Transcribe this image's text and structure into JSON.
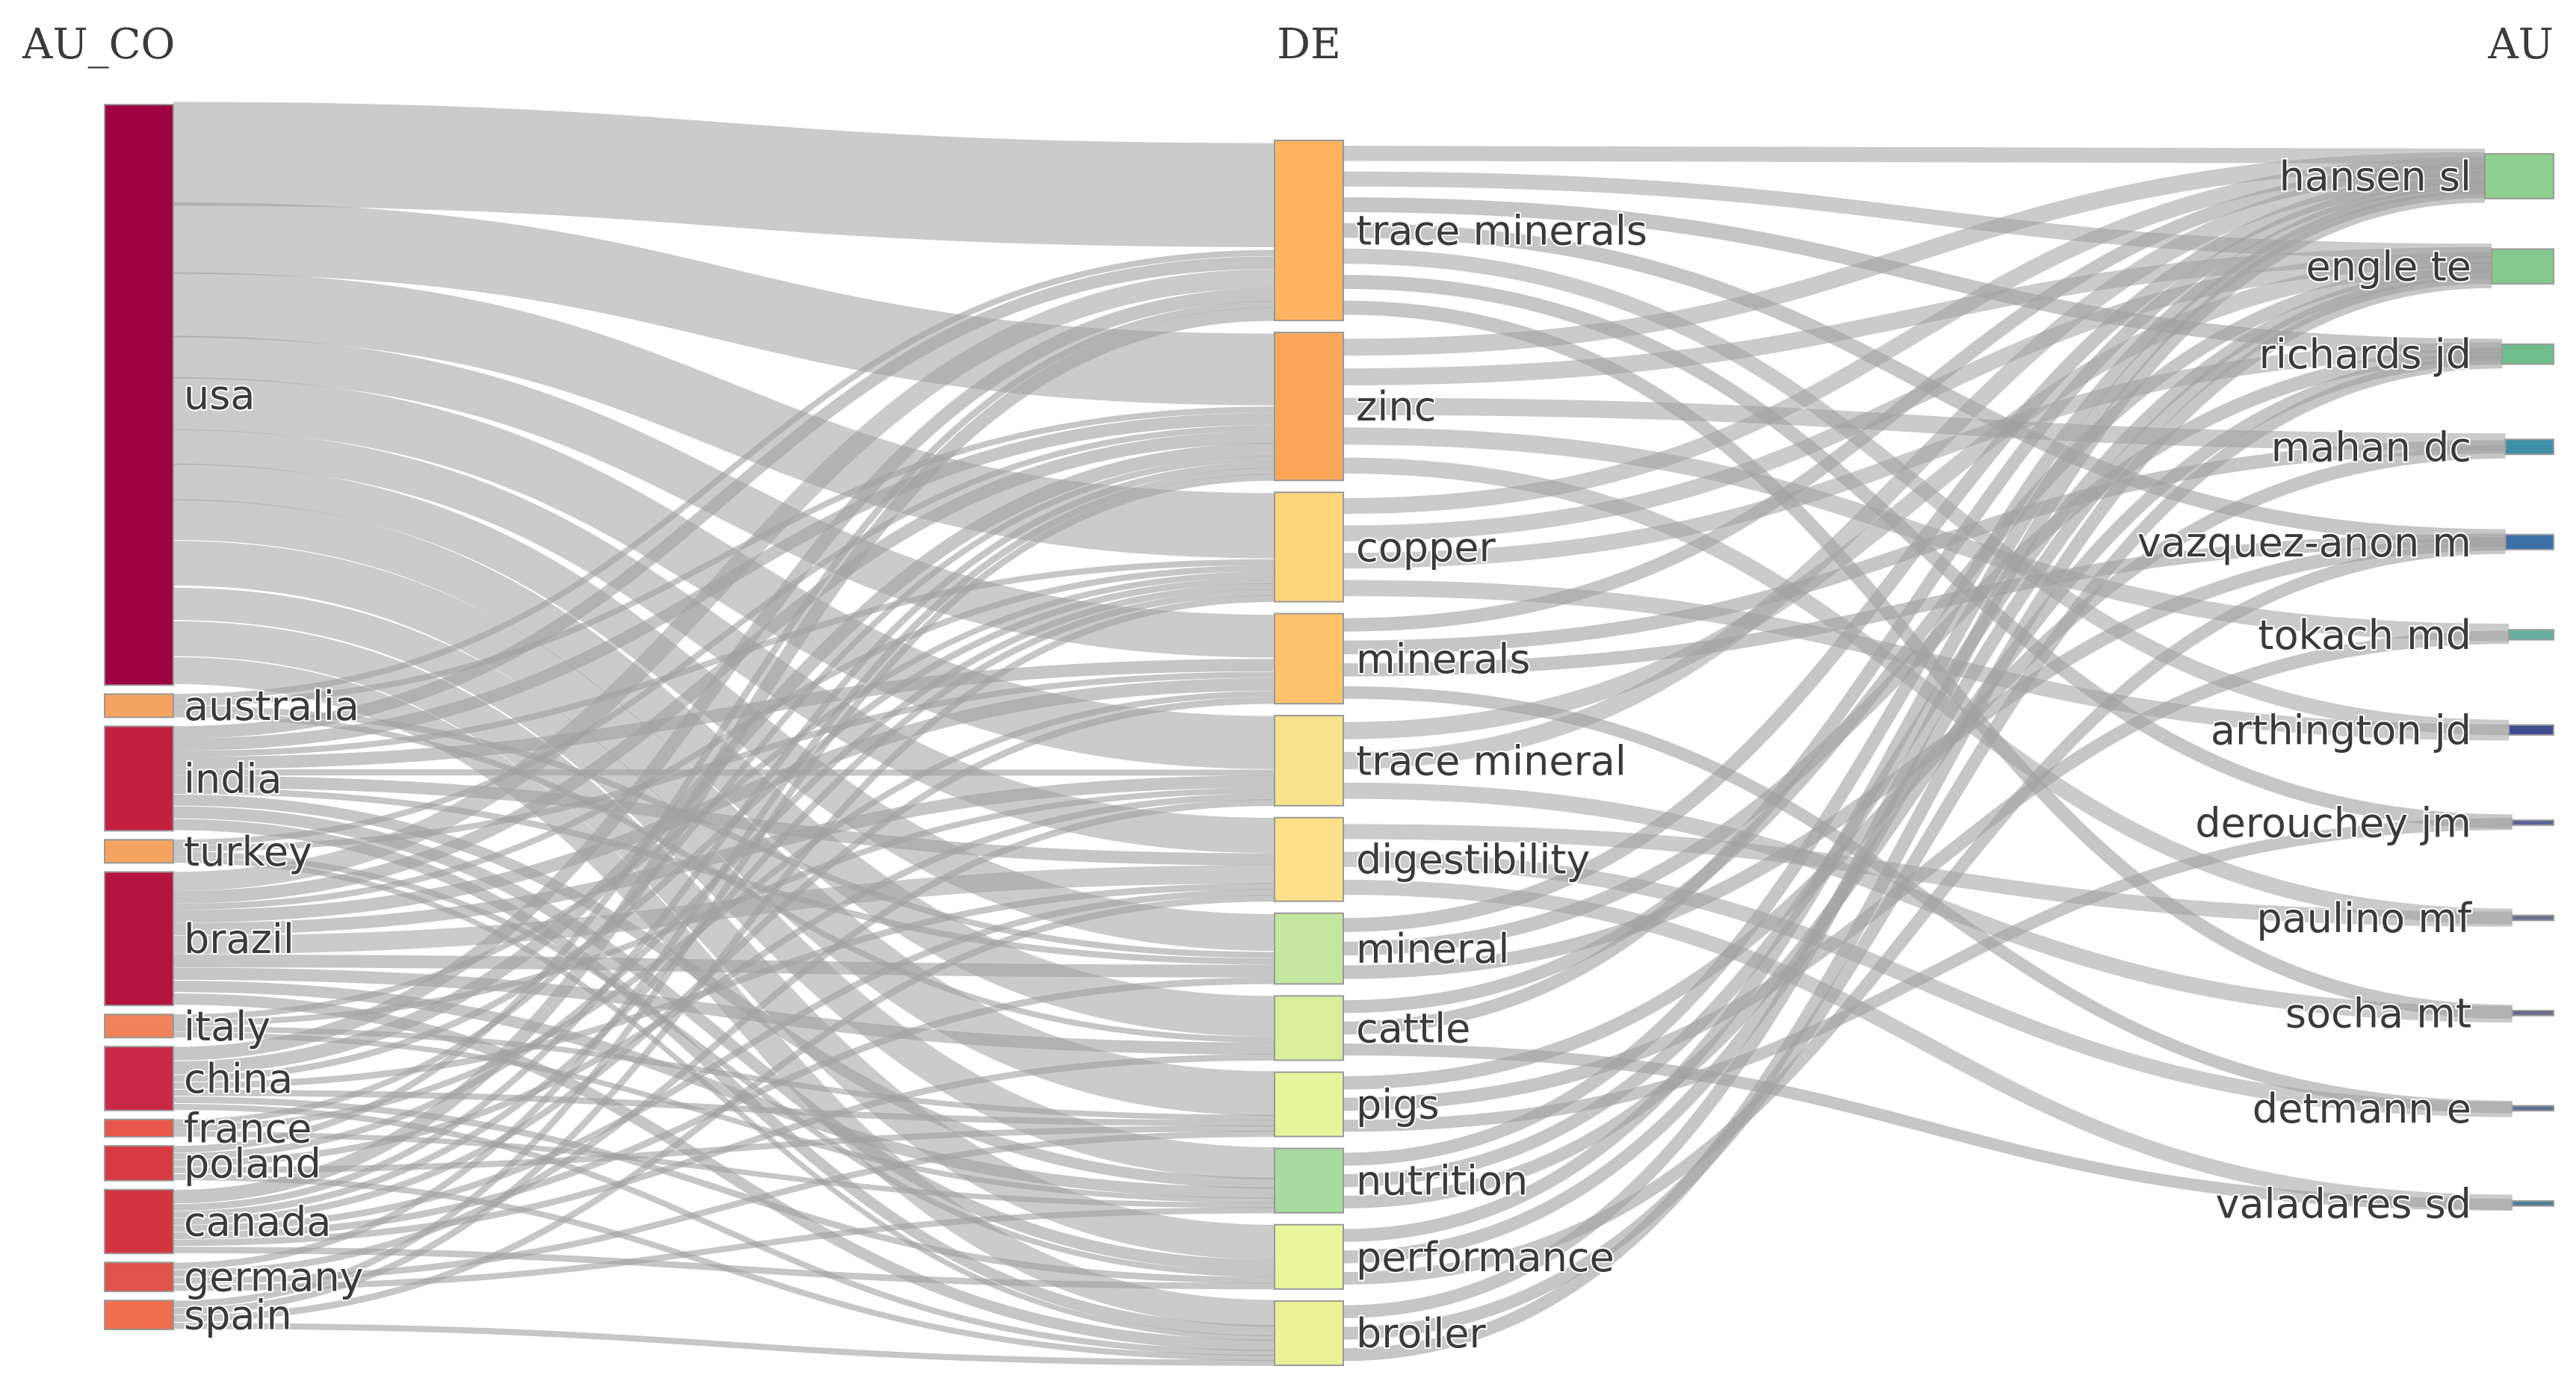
{
  "columns": [
    {
      "key": "AU_CO",
      "title": "AU_CO"
    },
    {
      "key": "DE",
      "title": "DE"
    },
    {
      "key": "AU",
      "title": "AU"
    }
  ],
  "nodes": {
    "AU_CO": [
      {
        "id": "usa",
        "label": "usa",
        "weight": 100,
        "color": "#9e0142"
      },
      {
        "id": "australia",
        "label": "australia",
        "weight": 4,
        "color": "#f4a460"
      },
      {
        "id": "india",
        "label": "india",
        "weight": 18,
        "color": "#c2203f"
      },
      {
        "id": "turkey",
        "label": "turkey",
        "weight": 4,
        "color": "#f4a460"
      },
      {
        "id": "brazil",
        "label": "brazil",
        "weight": 23,
        "color": "#b5143f"
      },
      {
        "id": "italy",
        "label": "italy",
        "weight": 4,
        "color": "#f0825a"
      },
      {
        "id": "china",
        "label": "china",
        "weight": 11,
        "color": "#c92846"
      },
      {
        "id": "france",
        "label": "france",
        "weight": 3,
        "color": "#e8584a"
      },
      {
        "id": "poland",
        "label": "poland",
        "weight": 6,
        "color": "#d83a44"
      },
      {
        "id": "canada",
        "label": "canada",
        "weight": 11,
        "color": "#d2353f"
      },
      {
        "id": "germany",
        "label": "germany",
        "weight": 5,
        "color": "#e0524a"
      },
      {
        "id": "spain",
        "label": "spain",
        "weight": 5,
        "color": "#f06f4e"
      }
    ],
    "DE": [
      {
        "id": "trace-minerals",
        "label": "trace minerals",
        "weight": 28,
        "color": "#fdb35f"
      },
      {
        "id": "zinc",
        "label": "zinc",
        "weight": 23,
        "color": "#fca65a"
      },
      {
        "id": "copper",
        "label": "copper",
        "weight": 17,
        "color": "#fdd67c"
      },
      {
        "id": "minerals",
        "label": "minerals",
        "weight": 14,
        "color": "#fdc36c"
      },
      {
        "id": "trace-mineral",
        "label": "trace mineral",
        "weight": 14,
        "color": "#f8e38a"
      },
      {
        "id": "digestibility",
        "label": "digestibility",
        "weight": 13,
        "color": "#fde088"
      },
      {
        "id": "mineral",
        "label": "mineral",
        "weight": 11,
        "color": "#c5e6a0"
      },
      {
        "id": "cattle",
        "label": "cattle",
        "weight": 10,
        "color": "#d8ee9a"
      },
      {
        "id": "pigs",
        "label": "pigs",
        "weight": 10,
        "color": "#e6f59c"
      },
      {
        "id": "nutrition",
        "label": "nutrition",
        "weight": 10,
        "color": "#a7dba0"
      },
      {
        "id": "performance",
        "label": "performance",
        "weight": 10,
        "color": "#e9f69e"
      },
      {
        "id": "broiler",
        "label": "broiler",
        "weight": 10,
        "color": "#eaf196"
      }
    ],
    "AU": [
      {
        "id": "hansen-sl",
        "label": "hansen sl",
        "weight": 9,
        "color": "#8fcf8f"
      },
      {
        "id": "engle-te",
        "label": "engle te",
        "weight": 7,
        "color": "#86c98e"
      },
      {
        "id": "richards-jd",
        "label": "richards jd",
        "weight": 4,
        "color": "#6fbf8c"
      },
      {
        "id": "mahan-dc",
        "label": "mahan dc",
        "weight": 3,
        "color": "#3e8fa8"
      },
      {
        "id": "vazquez-anon-m",
        "label": "vazquez-anon m",
        "weight": 3,
        "color": "#3a6fa8"
      },
      {
        "id": "tokach-md",
        "label": "tokach md",
        "weight": 2,
        "color": "#66b0a0"
      },
      {
        "id": "arthington-jd",
        "label": "arthington jd",
        "weight": 2,
        "color": "#3f4c8e"
      },
      {
        "id": "derouchey-jm",
        "label": "derouchey jm",
        "weight": 1,
        "color": "#5b5f96"
      },
      {
        "id": "paulino-mf",
        "label": "paulino mf",
        "weight": 1,
        "color": "#6b6f8e"
      },
      {
        "id": "socha-mt",
        "label": "socha mt",
        "weight": 1,
        "color": "#6a6a88"
      },
      {
        "id": "detmann-e",
        "label": "detmann e",
        "weight": 1,
        "color": "#5e6f96"
      },
      {
        "id": "valadares-sd",
        "label": "valadares sd",
        "weight": 1,
        "color": "#4b7f96"
      }
    ]
  },
  "links": [
    {
      "source": "usa",
      "target": "trace-minerals",
      "value": 17
    },
    {
      "source": "usa",
      "target": "zinc",
      "value": 12
    },
    {
      "source": "usa",
      "target": "copper",
      "value": 11
    },
    {
      "source": "usa",
      "target": "minerals",
      "value": 7
    },
    {
      "source": "usa",
      "target": "trace-mineral",
      "value": 9
    },
    {
      "source": "usa",
      "target": "digestibility",
      "value": 6
    },
    {
      "source": "usa",
      "target": "mineral",
      "value": 6
    },
    {
      "source": "usa",
      "target": "cattle",
      "value": 7
    },
    {
      "source": "usa",
      "target": "pigs",
      "value": 8
    },
    {
      "source": "usa",
      "target": "nutrition",
      "value": 6
    },
    {
      "source": "usa",
      "target": "performance",
      "value": 6
    },
    {
      "source": "usa",
      "target": "broiler",
      "value": 5
    },
    {
      "source": "australia",
      "target": "trace-minerals",
      "value": 1
    },
    {
      "source": "australia",
      "target": "zinc",
      "value": 1
    },
    {
      "source": "australia",
      "target": "mineral",
      "value": 1
    },
    {
      "source": "australia",
      "target": "cattle",
      "value": 1
    },
    {
      "source": "india",
      "target": "trace-minerals",
      "value": 2
    },
    {
      "source": "india",
      "target": "zinc",
      "value": 2
    },
    {
      "source": "india",
      "target": "copper",
      "value": 1
    },
    {
      "source": "india",
      "target": "minerals",
      "value": 2
    },
    {
      "source": "india",
      "target": "trace-mineral",
      "value": 1
    },
    {
      "source": "india",
      "target": "digestibility",
      "value": 2
    },
    {
      "source": "india",
      "target": "mineral",
      "value": 1
    },
    {
      "source": "india",
      "target": "nutrition",
      "value": 2
    },
    {
      "source": "india",
      "target": "performance",
      "value": 2
    },
    {
      "source": "india",
      "target": "broiler",
      "value": 2
    },
    {
      "source": "turkey",
      "target": "zinc",
      "value": 1
    },
    {
      "source": "turkey",
      "target": "minerals",
      "value": 1
    },
    {
      "source": "turkey",
      "target": "performance",
      "value": 1
    },
    {
      "source": "turkey",
      "target": "broiler",
      "value": 1
    },
    {
      "source": "brazil",
      "target": "trace-minerals",
      "value": 3
    },
    {
      "source": "brazil",
      "target": "zinc",
      "value": 2
    },
    {
      "source": "brazil",
      "target": "copper",
      "value": 1
    },
    {
      "source": "brazil",
      "target": "minerals",
      "value": 2
    },
    {
      "source": "brazil",
      "target": "trace-mineral",
      "value": 2
    },
    {
      "source": "brazil",
      "target": "digestibility",
      "value": 3
    },
    {
      "source": "brazil",
      "target": "mineral",
      "value": 2
    },
    {
      "source": "brazil",
      "target": "cattle",
      "value": 2
    },
    {
      "source": "brazil",
      "target": "nutrition",
      "value": 2
    },
    {
      "source": "brazil",
      "target": "broiler",
      "value": 2
    },
    {
      "source": "italy",
      "target": "copper",
      "value": 1
    },
    {
      "source": "italy",
      "target": "trace-mineral",
      "value": 1
    },
    {
      "source": "italy",
      "target": "pigs",
      "value": 1
    },
    {
      "source": "italy",
      "target": "nutrition",
      "value": 1
    },
    {
      "source": "china",
      "target": "trace-minerals",
      "value": 2
    },
    {
      "source": "china",
      "target": "zinc",
      "value": 2
    },
    {
      "source": "china",
      "target": "copper",
      "value": 1
    },
    {
      "source": "china",
      "target": "digestibility",
      "value": 1
    },
    {
      "source": "china",
      "target": "pigs",
      "value": 1
    },
    {
      "source": "china",
      "target": "performance",
      "value": 1
    },
    {
      "source": "china",
      "target": "broiler",
      "value": 1
    },
    {
      "source": "france",
      "target": "zinc",
      "value": 1
    },
    {
      "source": "france",
      "target": "minerals",
      "value": 1
    },
    {
      "source": "france",
      "target": "nutrition",
      "value": 1
    },
    {
      "source": "poland",
      "target": "trace-minerals",
      "value": 1
    },
    {
      "source": "poland",
      "target": "copper",
      "value": 1
    },
    {
      "source": "poland",
      "target": "trace-mineral",
      "value": 1
    },
    {
      "source": "poland",
      "target": "pigs",
      "value": 1
    },
    {
      "source": "poland",
      "target": "broiler",
      "value": 1
    },
    {
      "source": "canada",
      "target": "trace-minerals",
      "value": 2
    },
    {
      "source": "canada",
      "target": "zinc",
      "value": 1
    },
    {
      "source": "canada",
      "target": "copper",
      "value": 1
    },
    {
      "source": "canada",
      "target": "minerals",
      "value": 1
    },
    {
      "source": "canada",
      "target": "digestibility",
      "value": 1
    },
    {
      "source": "canada",
      "target": "mineral",
      "value": 1
    },
    {
      "source": "canada",
      "target": "cattle",
      "value": 1
    },
    {
      "source": "canada",
      "target": "performance",
      "value": 1
    },
    {
      "source": "germany",
      "target": "zinc",
      "value": 1
    },
    {
      "source": "germany",
      "target": "trace-mineral",
      "value": 1
    },
    {
      "source": "germany",
      "target": "pigs",
      "value": 1
    },
    {
      "source": "germany",
      "target": "nutrition",
      "value": 1
    },
    {
      "source": "spain",
      "target": "zinc",
      "value": 1
    },
    {
      "source": "spain",
      "target": "copper",
      "value": 1
    },
    {
      "source": "spain",
      "target": "digestibility",
      "value": 1
    },
    {
      "source": "spain",
      "target": "broiler",
      "value": 1
    },
    {
      "source": "trace-minerals",
      "target": "hansen-sl",
      "value": 1
    },
    {
      "source": "trace-minerals",
      "target": "engle-te",
      "value": 1
    },
    {
      "source": "trace-minerals",
      "target": "richards-jd",
      "value": 1
    },
    {
      "source": "trace-minerals",
      "target": "vazquez-anon-m",
      "value": 1
    },
    {
      "source": "trace-minerals",
      "target": "arthington-jd",
      "value": 1
    },
    {
      "source": "trace-minerals",
      "target": "derouchey-jm",
      "value": 1
    },
    {
      "source": "trace-minerals",
      "target": "socha-mt",
      "value": 1
    },
    {
      "source": "zinc",
      "target": "hansen-sl",
      "value": 1
    },
    {
      "source": "zinc",
      "target": "engle-te",
      "value": 1
    },
    {
      "source": "zinc",
      "target": "mahan-dc",
      "value": 1
    },
    {
      "source": "zinc",
      "target": "tokach-md",
      "value": 1
    },
    {
      "source": "zinc",
      "target": "paulino-mf",
      "value": 1
    },
    {
      "source": "copper",
      "target": "hansen-sl",
      "value": 1
    },
    {
      "source": "copper",
      "target": "engle-te",
      "value": 1
    },
    {
      "source": "copper",
      "target": "richards-jd",
      "value": 1
    },
    {
      "source": "copper",
      "target": "arthington-jd",
      "value": 1
    },
    {
      "source": "minerals",
      "target": "hansen-sl",
      "value": 1
    },
    {
      "source": "minerals",
      "target": "mahan-dc",
      "value": 1
    },
    {
      "source": "minerals",
      "target": "vazquez-anon-m",
      "value": 1
    },
    {
      "source": "minerals",
      "target": "detmann-e",
      "value": 1
    },
    {
      "source": "trace-mineral",
      "target": "engle-te",
      "value": 1
    },
    {
      "source": "trace-mineral",
      "target": "hansen-sl",
      "value": 1
    },
    {
      "source": "trace-mineral",
      "target": "socha-mt",
      "value": 1
    },
    {
      "source": "digestibility",
      "target": "paulino-mf",
      "value": 1
    },
    {
      "source": "digestibility",
      "target": "detmann-e",
      "value": 1
    },
    {
      "source": "digestibility",
      "target": "valadares-sd",
      "value": 1
    },
    {
      "source": "mineral",
      "target": "hansen-sl",
      "value": 1
    },
    {
      "source": "mineral",
      "target": "richards-jd",
      "value": 1
    },
    {
      "source": "mineral",
      "target": "vazquez-anon-m",
      "value": 1
    },
    {
      "source": "cattle",
      "target": "engle-te",
      "value": 1
    },
    {
      "source": "cattle",
      "target": "hansen-sl",
      "value": 1
    },
    {
      "source": "cattle",
      "target": "valadares-sd",
      "value": 1
    },
    {
      "source": "pigs",
      "target": "mahan-dc",
      "value": 1
    },
    {
      "source": "pigs",
      "target": "tokach-md",
      "value": 1
    },
    {
      "source": "pigs",
      "target": "derouchey-jm",
      "value": 1
    },
    {
      "source": "nutrition",
      "target": "hansen-sl",
      "value": 1
    },
    {
      "source": "nutrition",
      "target": "engle-te",
      "value": 1
    },
    {
      "source": "nutrition",
      "target": "richards-jd",
      "value": 1
    },
    {
      "source": "performance",
      "target": "hansen-sl",
      "value": 1
    },
    {
      "source": "performance",
      "target": "engle-te",
      "value": 1
    },
    {
      "source": "performance",
      "target": "vazquez-anon-m",
      "value": 1
    },
    {
      "source": "broiler",
      "target": "hansen-sl",
      "value": 1
    },
    {
      "source": "broiler",
      "target": "richards-jd",
      "value": 1
    },
    {
      "source": "broiler",
      "target": "engle-te",
      "value": 1
    }
  ],
  "link_color": "#a0a0a0"
}
